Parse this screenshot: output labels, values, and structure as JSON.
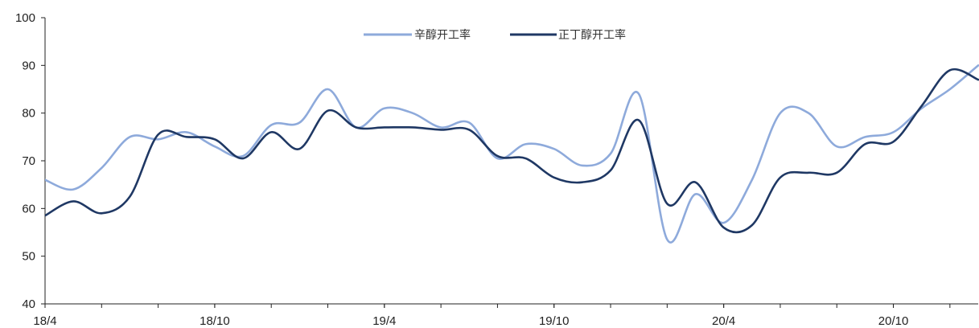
{
  "chart_data": {
    "type": "line",
    "title": "",
    "xlabel": "",
    "ylabel": "",
    "ylim": [
      40,
      100
    ],
    "yticks": [
      "40",
      "50",
      "60",
      "70",
      "80",
      "90",
      "100"
    ],
    "xticks": [
      "18/4",
      "18/10",
      "19/4",
      "19/10",
      "20/4",
      "20/10"
    ],
    "grid": false,
    "legend_position": "top-center",
    "x": [
      "18/4",
      "18/5",
      "18/6",
      "18/7",
      "18/8",
      "18/9",
      "18/10",
      "18/11",
      "18/12",
      "19/1",
      "19/2",
      "19/3",
      "19/4",
      "19/5",
      "19/6",
      "19/7",
      "19/8",
      "19/9",
      "19/10",
      "19/11",
      "19/12",
      "20/1",
      "20/2",
      "20/3",
      "20/4",
      "20/5",
      "20/6",
      "20/7",
      "20/8",
      "20/9",
      "20/10",
      "20/11",
      "20/12",
      "21/1"
    ],
    "series": [
      {
        "name": "辛醇开工率",
        "color": "#8eaadb",
        "values": [
          66.0,
          64.0,
          68.5,
          75.0,
          74.5,
          76.0,
          73.0,
          71.0,
          77.5,
          78.0,
          85.0,
          77.0,
          81.0,
          80.0,
          77.0,
          78.0,
          70.5,
          73.5,
          72.5,
          69.0,
          71.5,
          84.0,
          53.5,
          63.0,
          57.0,
          66.0,
          80.0,
          80.0,
          73.0,
          75.0,
          76.0,
          81.0,
          85.0,
          90.0
        ]
      },
      {
        "name": "正丁醇开工率",
        "color": "#1f3864",
        "values": [
          58.5,
          61.5,
          59.0,
          62.5,
          75.5,
          75.0,
          74.5,
          70.5,
          76.0,
          72.5,
          80.5,
          77.0,
          77.0,
          77.0,
          76.5,
          76.5,
          71.0,
          70.5,
          66.5,
          65.5,
          68.0,
          78.5,
          61.0,
          65.5,
          56.0,
          56.5,
          66.5,
          67.5,
          67.5,
          73.5,
          74.0,
          81.5,
          89.0,
          87.0
        ]
      }
    ]
  }
}
